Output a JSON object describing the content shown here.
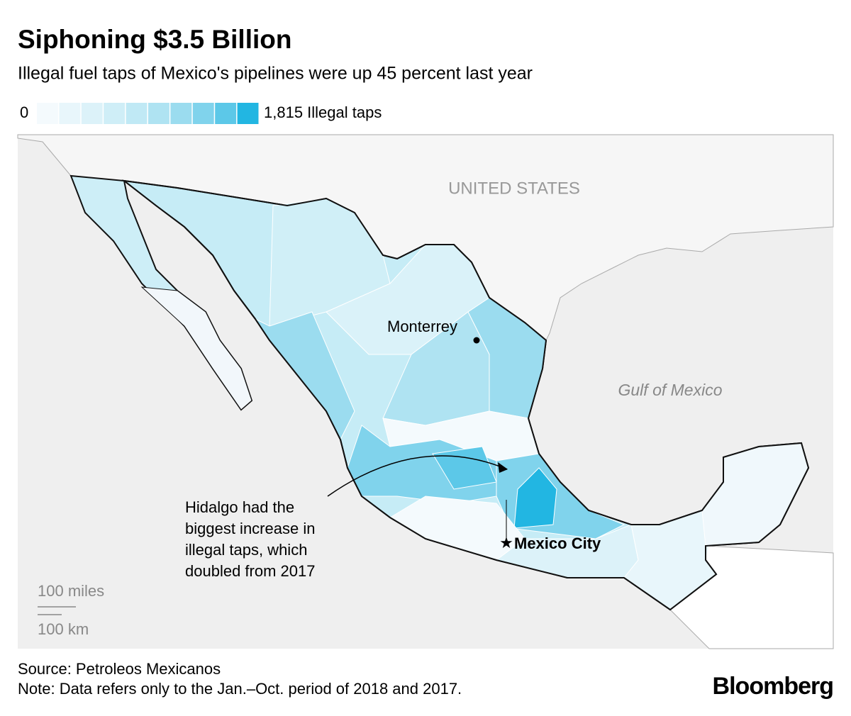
{
  "header": {
    "title": "Siphoning $3.5 Billion",
    "subtitle": "Illegal fuel taps of Mexico's pipelines were up 45 percent last year"
  },
  "legend": {
    "min_label": "0",
    "max_label": "1,815 Illegal taps",
    "colors": [
      "#f4fafd",
      "#e8f6fb",
      "#dcf2f9",
      "#cfeef7",
      "#c0e9f5",
      "#afe3f2",
      "#9bdcef",
      "#80d3ec",
      "#5cc8e8",
      "#22b6e2"
    ]
  },
  "map": {
    "country_label": "UNITED STATES",
    "sea_label": "Gulf of Mexico",
    "city_label": "Monterrey",
    "capital_label": "Mexico City",
    "annotation": [
      "Hidalgo had the",
      "biggest increase in",
      "illegal taps, which",
      "doubled from 2017"
    ],
    "scale": [
      "100 miles",
      "100 km"
    ]
  },
  "footer": {
    "source": "Source: Petroleos Mexicanos",
    "note": "Note: Data refers only to the Jan.–Oct. period of 2018 and 2017.",
    "brand": "Bloomberg"
  }
}
